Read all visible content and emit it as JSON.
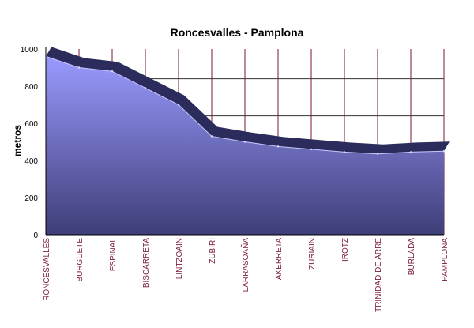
{
  "chart_data": {
    "type": "area",
    "title": "Roncesvalles - Pamplona",
    "xlabel": "",
    "ylabel": "metros",
    "ylim": [
      0,
      1000
    ],
    "yticks": [
      0,
      200,
      400,
      600,
      800,
      1000
    ],
    "grid": {
      "horizontal_major": [
        640,
        840
      ],
      "vertical": true
    },
    "categories": [
      "RONCESVALLES",
      "BURGUETE",
      "ESPINAL",
      "BISCARRETA",
      "LINTZOAIN",
      "ZUBIRI",
      "LARRASOAÑA",
      "AKERRETA",
      "ZURIAIN",
      "IROTZ",
      "TRINIDAD DE ARRE",
      "BURLADA",
      "PAMPLONA"
    ],
    "values": [
      960,
      900,
      880,
      790,
      700,
      530,
      500,
      475,
      460,
      445,
      435,
      445,
      450
    ],
    "colors": {
      "area_top": "#9a9aff",
      "area_bottom": "#3e3e78",
      "ridge": "#2c2c5c",
      "grid": "#7a1a3a",
      "tick_label": "#7a1a3a"
    }
  }
}
